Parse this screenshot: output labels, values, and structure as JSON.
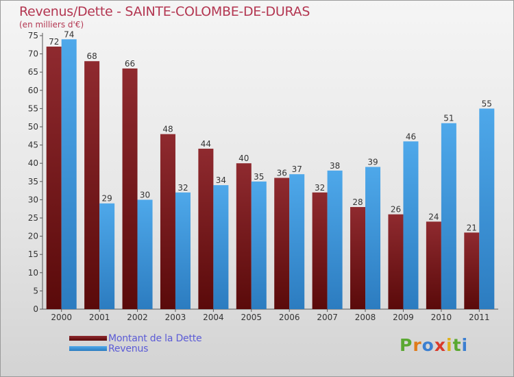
{
  "title": "Revenus/Dette - SAINTE-COLOMBE-DE-DURAS",
  "subtitle": "(en milliers d'€)",
  "colors": {
    "dette": "#8b2323",
    "revenus": "#3f9ae0",
    "title": "#b33651",
    "legend_text": "#5b5bd6"
  },
  "legend": {
    "dette_label": "Montant de la Dette",
    "revenus_label": "Revenus"
  },
  "logo": {
    "text": "Proxiti"
  },
  "chart_data": {
    "type": "bar",
    "title": "Revenus/Dette - SAINTE-COLOMBE-DE-DURAS",
    "subtitle": "(en milliers d'€)",
    "categories": [
      "2000",
      "2001",
      "2002",
      "2003",
      "2004",
      "2005",
      "2006",
      "2007",
      "2008",
      "2009",
      "2010",
      "2011"
    ],
    "series": [
      {
        "name": "Montant de la Dette",
        "values": [
          72,
          68,
          66,
          48,
          44,
          40,
          36,
          32,
          28,
          26,
          24,
          21
        ]
      },
      {
        "name": "Revenus",
        "values": [
          74,
          29,
          30,
          32,
          34,
          35,
          37,
          38,
          39,
          46,
          51,
          55
        ]
      }
    ],
    "ylim": [
      0,
      75
    ],
    "yticks": [
      0,
      5,
      10,
      15,
      20,
      25,
      30,
      35,
      40,
      45,
      50,
      55,
      60,
      65,
      70,
      75
    ],
    "grid": false,
    "legend_position": "bottom-left"
  }
}
